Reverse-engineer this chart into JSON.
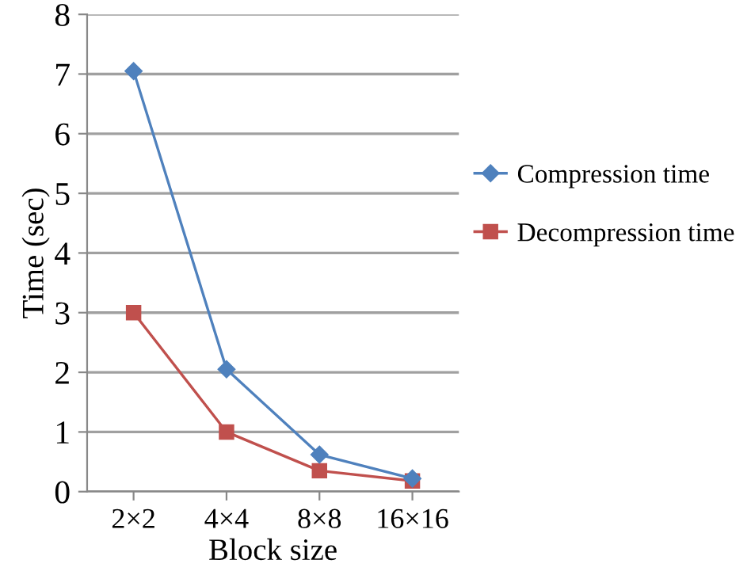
{
  "chart_data": {
    "type": "line",
    "xlabel": "Block size",
    "ylabel": "Time (sec)",
    "categories": [
      "2×2",
      "4×4",
      "8×8",
      "16×16"
    ],
    "series": [
      {
        "name": "Compression time",
        "color": "#4f81bd",
        "marker": "diamond",
        "values": [
          7.05,
          2.05,
          0.62,
          0.22
        ]
      },
      {
        "name": "Decompression time",
        "color": "#c0504d",
        "marker": "square",
        "values": [
          3.0,
          1.0,
          0.35,
          0.18
        ]
      }
    ],
    "ylim": [
      0,
      8
    ],
    "yticks": [
      0,
      1,
      2,
      3,
      4,
      5,
      6,
      7,
      8
    ],
    "grid": "y",
    "legend": "right",
    "line_style": "solid"
  }
}
